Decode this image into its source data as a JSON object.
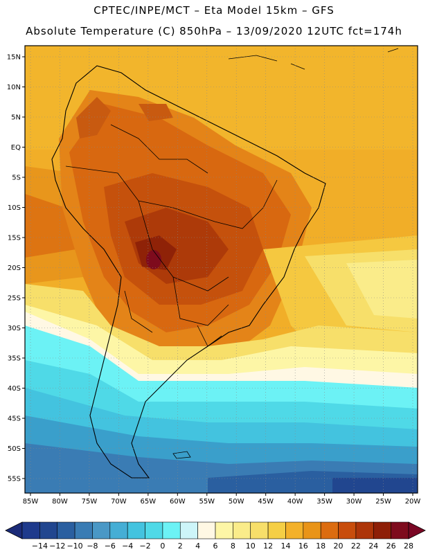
{
  "header": {
    "title_line1": "CPTEC/INPE/MCT –  Eta Model 15km – GFS",
    "title_line2": "Absolute Temperature (C) 850hPa – 13/09/2020 12UTC fct=174h"
  },
  "map": {
    "lat_labels": [
      "15N",
      "10N",
      "5N",
      "EQ",
      "5S",
      "10S",
      "15S",
      "20S",
      "25S",
      "30S",
      "35S",
      "40S",
      "45S",
      "50S",
      "55S"
    ],
    "lon_labels": [
      "85W",
      "80W",
      "75W",
      "70W",
      "65W",
      "60W",
      "55W",
      "50W",
      "45W",
      "40W",
      "35W",
      "30W",
      "25W",
      "20W"
    ]
  },
  "colorbar": {
    "labels": [
      "−14",
      "−12",
      "−10",
      "−8",
      "−6",
      "−4",
      "−2",
      "0",
      "2",
      "4",
      "6",
      "8",
      "10",
      "12",
      "14",
      "16",
      "18",
      "20",
      "22",
      "24",
      "26",
      "28"
    ],
    "colors": [
      "#1e3a8c",
      "#21468f",
      "#2a5fa0",
      "#3a7cb4",
      "#4a98c6",
      "#45aed5",
      "#43c3df",
      "#4fd9e7",
      "#6cf2f5",
      "#cdf5f9",
      "#fff8e4",
      "#fdf6a6",
      "#faec8a",
      "#f7df6a",
      "#f5cf45",
      "#f3b12a",
      "#e99418",
      "#dc6c10",
      "#c84d0c",
      "#ad3509",
      "#8e1f07",
      "#7e0b1d"
    ],
    "low_end_color": "#1b2b78",
    "high_end_color": "#7a0724"
  }
}
